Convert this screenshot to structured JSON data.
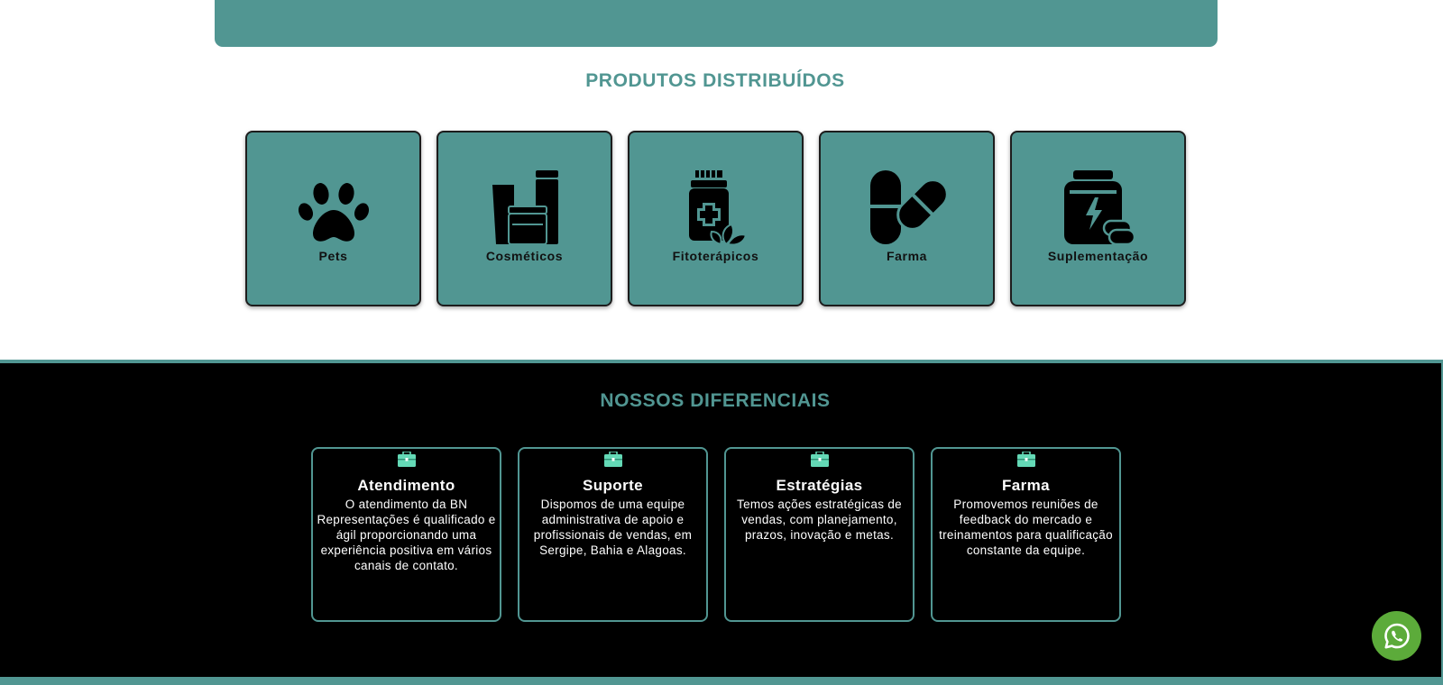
{
  "products": {
    "title": "PRODUTOS DISTRIBUÍDOS",
    "items": [
      {
        "label": "Pets",
        "icon": "paw-icon"
      },
      {
        "label": "Cosméticos",
        "icon": "cosmetics-icon"
      },
      {
        "label": "Fitoterápicos",
        "icon": "herbal-bottle-icon"
      },
      {
        "label": "Farma",
        "icon": "pills-icon"
      },
      {
        "label": "Suplementação",
        "icon": "supplement-jar-icon"
      }
    ]
  },
  "differentials": {
    "title": "NOSSOS DIFERENCIAIS",
    "items": [
      {
        "title": "Atendimento",
        "text": "O atendimento da BN Representações é qualificado e ágil proporcionando uma experiência positiva em vários canais de contato.",
        "icon": "briefcase-icon"
      },
      {
        "title": "Suporte",
        "text": "Dispomos de uma equipe administrativa de apoio e profissionais de vendas, em Sergipe, Bahia e Alagoas.",
        "icon": "briefcase-icon"
      },
      {
        "title": "Estratégias",
        "text": "Temos ações estratégicas de vendas, com planejamento, prazos, inovação e metas.",
        "icon": "briefcase-icon"
      },
      {
        "title": "Farma",
        "text": "Promovemos reuniões de feedback do mercado e treinamentos para qualificação constante da equipe.",
        "icon": "briefcase-icon"
      }
    ]
  },
  "floating": {
    "icon": "whatsapp-icon"
  },
  "colors": {
    "accent": "#519692",
    "section_dark": "#000000",
    "whatsapp": "#5cab3a",
    "briefcase": "#64d9b6"
  }
}
